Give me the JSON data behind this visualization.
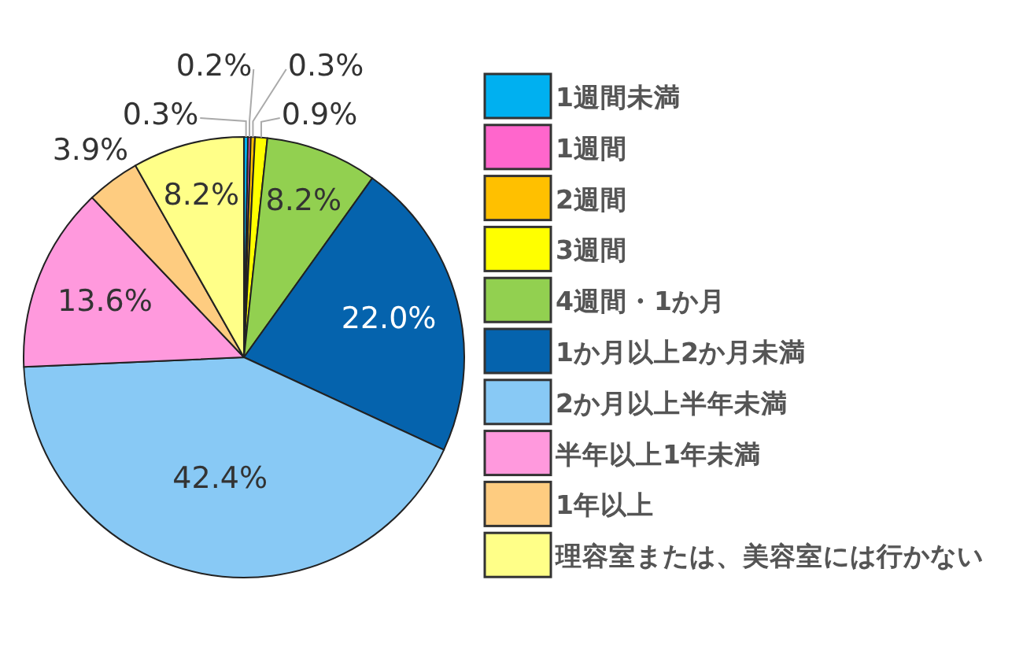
{
  "chart_data": {
    "type": "pie",
    "categories": [
      "1週間未満",
      "1週間",
      "2週間",
      "3週間",
      "4週間・1か月",
      "1か月以上2か月未満",
      "2か月以上半年未満",
      "半年以上1年未満",
      "1年以上",
      "理容室または、美容室には行かない"
    ],
    "values": [
      0.3,
      0.2,
      0.3,
      0.9,
      8.2,
      22.0,
      42.4,
      13.6,
      3.9,
      8.2
    ],
    "value_labels": [
      "0.3%",
      "0.2%",
      "0.3%",
      "0.9%",
      "8.2%",
      "22.0%",
      "42.4%",
      "13.6%",
      "3.9%",
      "8.2%"
    ],
    "colors": [
      "#00b0f0",
      "#ff66cc",
      "#ffc000",
      "#ffff00",
      "#92d050",
      "#0563ad",
      "#88c9f5",
      "#ff99dd",
      "#fecc80",
      "#ffff88"
    ],
    "legend": "right"
  }
}
